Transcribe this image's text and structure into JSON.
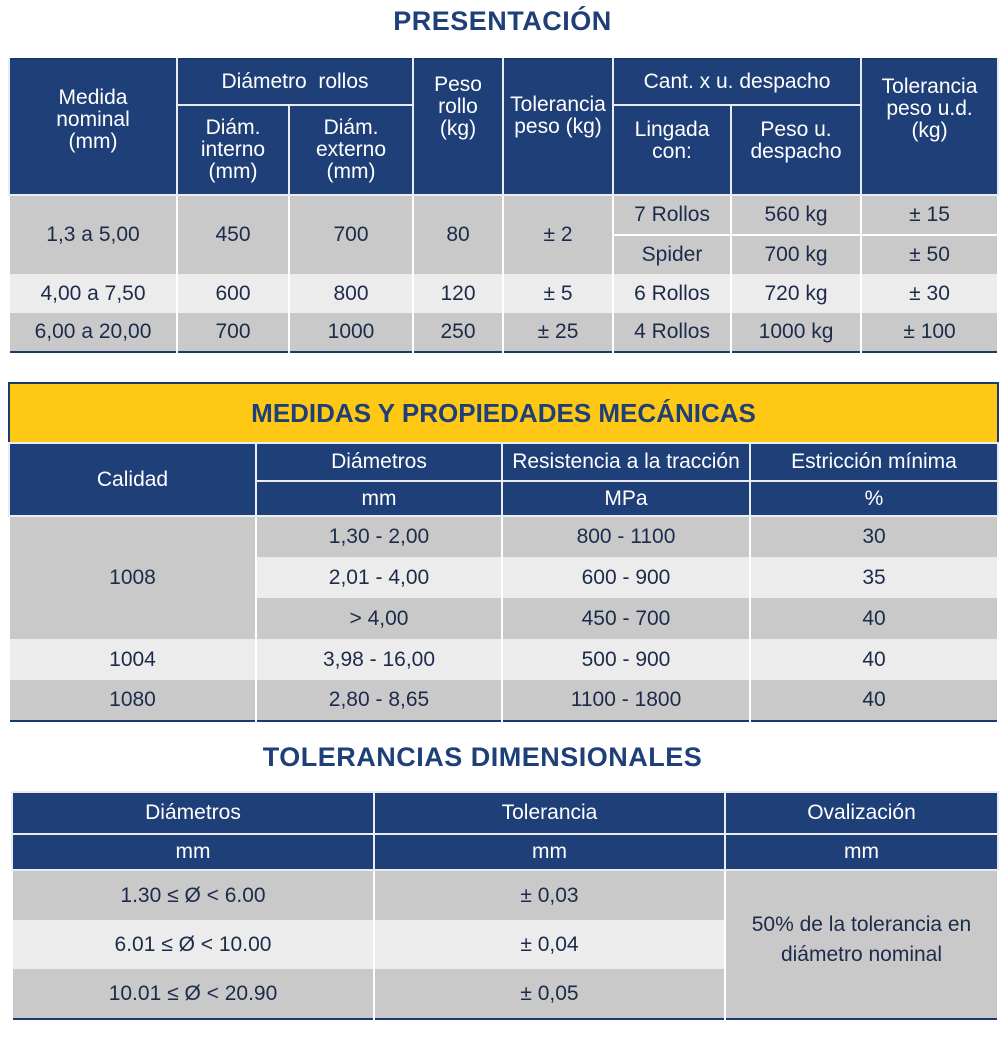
{
  "presentacion": {
    "title": "PRESENTACIÓN",
    "headers": {
      "medida": "Medida nominal (mm)",
      "diametro_rollos": "Diámetro  rollos",
      "diam_interno": "Diám. interno (mm)",
      "diam_externo": "Diám. externo (mm)",
      "peso_rollo": "Peso rollo (kg)",
      "tolerancia_peso": "Tolerancia peso (kg)",
      "cant_despacho": "Cant. x u. despacho",
      "lingada": "Lingada con:",
      "peso_despacho": "Peso  u. despacho",
      "tolerancia_ud": "Tolerancia peso u.d. (kg)"
    },
    "rows": [
      {
        "medida": "1,3 a 5,00",
        "interno": "450",
        "externo": "700",
        "peso": "80",
        "tol": "± 2",
        "sub": [
          {
            "lingada": "7 Rollos",
            "peso_ud": "560 kg",
            "tol_ud": "± 15"
          },
          {
            "lingada": "Spider",
            "peso_ud": "700 kg",
            "tol_ud": "± 50"
          }
        ]
      },
      {
        "medida": "4,00 a 7,50",
        "interno": "600",
        "externo": "800",
        "peso": "120",
        "tol": "± 5",
        "sub": [
          {
            "lingada": "6 Rollos",
            "peso_ud": "720 kg",
            "tol_ud": "± 30"
          }
        ]
      },
      {
        "medida": "6,00 a 20,00",
        "interno": "700",
        "externo": "1000",
        "peso": "250",
        "tol": "± 25",
        "sub": [
          {
            "lingada": "4 Rollos",
            "peso_ud": "1000 kg",
            "tol_ud": "± 100"
          }
        ]
      }
    ]
  },
  "mecanicas": {
    "title": "MEDIDAS Y PROPIEDADES MECÁNICAS",
    "headers": {
      "calidad": "Calidad",
      "diametros": "Diámetros",
      "diametros_unit": "mm",
      "resistencia": "Resistencia a la tracción",
      "resistencia_unit": "MPa",
      "estriccion": "Estricción mínima",
      "estriccion_unit": "%"
    },
    "groups": [
      {
        "calidad": "1008",
        "rows": [
          {
            "diametro": "1,30 - 2,00",
            "resistencia": "800 - 1100",
            "estriccion": "30"
          },
          {
            "diametro": "2,01 - 4,00",
            "resistencia": "600 - 900",
            "estriccion": "35"
          },
          {
            "diametro": "> 4,00",
            "resistencia": "450 - 700",
            "estriccion": "40"
          }
        ]
      },
      {
        "calidad": "1004",
        "rows": [
          {
            "diametro": "3,98 - 16,00",
            "resistencia": "500 - 900",
            "estriccion": "40"
          }
        ]
      },
      {
        "calidad": "1080",
        "rows": [
          {
            "diametro": "2,80 - 8,65",
            "resistencia": "1100 - 1800",
            "estriccion": "40"
          }
        ]
      }
    ]
  },
  "tolerancias": {
    "title": "TOLERANCIAS DIMENSIONALES",
    "headers": {
      "diametros": "Diámetros",
      "diametros_unit": "mm",
      "tolerancia": "Tolerancia",
      "tolerancia_unit": "mm",
      "ovalizacion": "Ovalización",
      "ovalizacion_unit": "mm"
    },
    "rows": [
      {
        "diametro": "1.30 ≤ Ø < 6.00",
        "tolerancia": "± 0,03"
      },
      {
        "diametro": "6.01 ≤ Ø < 10.00",
        "tolerancia": "± 0,04"
      },
      {
        "diametro": "10.01 ≤ Ø < 20.90",
        "tolerancia": "± 0,05"
      }
    ],
    "ovalizacion_note": "50% de la tolerancia en diámetro nominal"
  },
  "colors": {
    "header_blue": "#1f3f78",
    "accent_yellow": "#ffc814",
    "row_dark": "#c9c9c9",
    "row_light": "#ececec"
  }
}
